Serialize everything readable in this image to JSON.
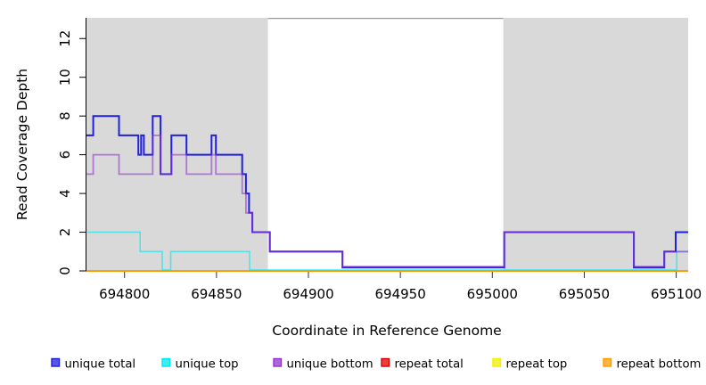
{
  "figure": {
    "background": "#ffffff",
    "plot_background": "#ffffff"
  },
  "chart_data": {
    "type": "line",
    "step": true,
    "title": "",
    "xlabel": "Coordinate in Reference Genome",
    "ylabel": "Read Coverage Depth",
    "xlim": [
      694779.3,
      695106.5
    ],
    "ylim": [
      0,
      13.07
    ],
    "grid": false,
    "x_ticks": [
      694800,
      694850,
      694900,
      694950,
      695000,
      695050,
      695100
    ],
    "y_ticks": [
      0,
      2,
      4,
      6,
      8,
      10,
      12
    ],
    "regions": [
      {
        "kind": "repeat-region",
        "x0": 694779.3,
        "x1": 694878.0,
        "color": "#d9d9d9"
      },
      {
        "kind": "unique-region",
        "x0": 694878.0,
        "x1": 695006.0,
        "color": "#ffffff",
        "top_border": "#999999"
      },
      {
        "kind": "repeat-region",
        "x0": 695006.0,
        "x1": 695106.5,
        "color": "#d9d9d9"
      }
    ],
    "series": [
      {
        "name": "repeat total",
        "color": "#dd0000",
        "opacity": 1,
        "width": 1.5,
        "zero_offset": 0,
        "points": [
          [
            694779.3,
            0
          ]
        ]
      },
      {
        "name": "repeat top",
        "color": "#f0f000",
        "opacity": 1,
        "width": 1.5,
        "zero_offset": 0,
        "points": [
          [
            694779.3,
            0
          ]
        ]
      },
      {
        "name": "repeat bottom",
        "color": "#ff9c00",
        "opacity": 1,
        "width": 1.8,
        "zero_offset": 0,
        "points": [
          [
            694779.3,
            0
          ]
        ]
      },
      {
        "name": "unique top",
        "color": "#00e5ee",
        "opacity": 0.62,
        "width": 1.6,
        "zero_offset": 0.05,
        "points": [
          [
            694779.3,
            2
          ],
          [
            694808.5,
            1
          ],
          [
            694820.5,
            0
          ],
          [
            694825.1,
            1
          ],
          [
            694868.0,
            0
          ],
          [
            695100.3,
            1
          ]
        ]
      },
      {
        "name": "unique total",
        "color": "#2020dd",
        "opacity": 1,
        "width": 2,
        "zero_offset": 0.18,
        "points": [
          [
            694779.3,
            7
          ],
          [
            694783.0,
            8
          ],
          [
            694797.0,
            7
          ],
          [
            694807.5,
            6
          ],
          [
            694809.0,
            7
          ],
          [
            694810.5,
            6
          ],
          [
            694815.3,
            8
          ],
          [
            694819.6,
            5
          ],
          [
            694825.5,
            7
          ],
          [
            694833.7,
            6
          ],
          [
            694847.3,
            7
          ],
          [
            694849.7,
            6
          ],
          [
            694864.0,
            5
          ],
          [
            694866.0,
            4
          ],
          [
            694867.7,
            3
          ],
          [
            694869.5,
            2
          ],
          [
            694879.0,
            1
          ],
          [
            694918.5,
            0
          ],
          [
            695006.5,
            2
          ],
          [
            695077.0,
            0
          ],
          [
            695093.5,
            1
          ],
          [
            695099.7,
            2
          ]
        ]
      },
      {
        "name": "unique bottom",
        "color": "#9432d3",
        "opacity": 0.6,
        "width": 1.8,
        "zero_offset": 0.23,
        "points": [
          [
            694779.3,
            5
          ],
          [
            694783.0,
            6
          ],
          [
            694797.0,
            5
          ],
          [
            694815.3,
            7
          ],
          [
            694819.6,
            5
          ],
          [
            694825.5,
            6
          ],
          [
            694833.7,
            5
          ],
          [
            694847.3,
            6
          ],
          [
            694849.7,
            5
          ],
          [
            694864.0,
            4
          ],
          [
            694866.0,
            3
          ],
          [
            694869.5,
            2
          ],
          [
            694879.0,
            1
          ],
          [
            694918.5,
            0
          ],
          [
            695006.5,
            2
          ],
          [
            695077.0,
            0
          ],
          [
            695093.5,
            1
          ]
        ]
      }
    ],
    "legend": {
      "position": "bottom",
      "items": [
        {
          "label": "unique total",
          "color": "#2020dd"
        },
        {
          "label": "unique top",
          "color": "#00e5ee"
        },
        {
          "label": "unique bottom",
          "color": "#9432d3"
        },
        {
          "label": "repeat total",
          "color": "#dd0000"
        },
        {
          "label": "repeat top",
          "color": "#f0f000"
        },
        {
          "label": "repeat bottom",
          "color": "#ff9c00"
        }
      ]
    }
  }
}
